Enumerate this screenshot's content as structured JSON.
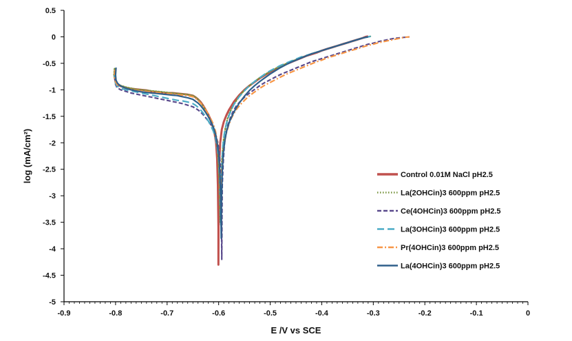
{
  "chart_data": {
    "type": "line",
    "title": "",
    "xlabel": "E /V vs SCE",
    "ylabel": "log (mA/cm²)",
    "xlim": [
      -0.9,
      0
    ],
    "ylim": [
      -5,
      0.5
    ],
    "x_ticks": [
      -0.9,
      -0.8,
      -0.7,
      -0.6,
      -0.5,
      -0.4,
      -0.3,
      -0.2,
      -0.1,
      0
    ],
    "x_tick_labels": [
      "-0.9",
      "-0.8",
      "-0.7",
      "-0.6",
      "-0.5",
      "-0.4",
      "-0.3",
      "-0.2",
      "-0.1",
      "0"
    ],
    "y_ticks": [
      0.5,
      0,
      -0.5,
      -1,
      -1.5,
      -2,
      -2.5,
      -3,
      -3.5,
      -4,
      -4.5,
      -5
    ],
    "y_tick_labels": [
      "0.5",
      "0",
      "-0.5",
      "-1",
      "-1.5",
      "-2",
      "-2.5",
      "-3",
      "-3.5",
      "-4",
      "-4.5",
      "-5"
    ],
    "grid": false,
    "legend_position": "right",
    "series": [
      {
        "name": "Control 0.01M NaCl pH2.5",
        "color": "#c0504d",
        "dash": "solid",
        "x": [
          -0.801,
          -0.802,
          -0.8,
          -0.797,
          -0.79,
          -0.78,
          -0.77,
          -0.76,
          -0.75,
          -0.74,
          -0.73,
          -0.72,
          -0.71,
          -0.7,
          -0.69,
          -0.68,
          -0.67,
          -0.66,
          -0.65,
          -0.645,
          -0.64,
          -0.635,
          -0.63,
          -0.625,
          -0.62,
          -0.615,
          -0.612,
          -0.608,
          -0.605,
          -0.603,
          -0.6015,
          -0.6005,
          -0.6005,
          -0.6,
          -0.599,
          -0.597,
          -0.594,
          -0.59,
          -0.585,
          -0.58,
          -0.575,
          -0.57,
          -0.56,
          -0.55,
          -0.54,
          -0.53,
          -0.52,
          -0.51,
          -0.5,
          -0.49,
          -0.48,
          -0.47,
          -0.46,
          -0.45,
          -0.44,
          -0.43,
          -0.42,
          -0.41,
          -0.4,
          -0.39,
          -0.38,
          -0.37,
          -0.36,
          -0.35,
          -0.34,
          -0.33,
          -0.32,
          -0.315,
          -0.31
        ],
        "y": [
          -0.6,
          -0.75,
          -0.85,
          -0.9,
          -0.93,
          -0.96,
          -0.98,
          -0.99,
          -1.0,
          -1.01,
          -1.03,
          -1.04,
          -1.05,
          -1.06,
          -1.06,
          -1.07,
          -1.08,
          -1.09,
          -1.11,
          -1.14,
          -1.18,
          -1.23,
          -1.3,
          -1.38,
          -1.47,
          -1.58,
          -1.68,
          -1.82,
          -2.0,
          -2.3,
          -2.8,
          -3.6,
          -4.3,
          -3.0,
          -2.4,
          -2.0,
          -1.75,
          -1.6,
          -1.48,
          -1.38,
          -1.3,
          -1.22,
          -1.1,
          -1.0,
          -0.92,
          -0.85,
          -0.78,
          -0.72,
          -0.66,
          -0.61,
          -0.56,
          -0.52,
          -0.48,
          -0.44,
          -0.4,
          -0.36,
          -0.33,
          -0.3,
          -0.26,
          -0.23,
          -0.2,
          -0.17,
          -0.14,
          -0.11,
          -0.08,
          -0.05,
          -0.02,
          0.0,
          0.01
        ]
      },
      {
        "name": "La(2OHCin)3 600ppm pH2.5",
        "color": "#77933c",
        "dash": "dot",
        "x": [
          -0.802,
          -0.803,
          -0.801,
          -0.797,
          -0.79,
          -0.78,
          -0.77,
          -0.76,
          -0.75,
          -0.74,
          -0.73,
          -0.72,
          -0.71,
          -0.7,
          -0.69,
          -0.68,
          -0.67,
          -0.66,
          -0.65,
          -0.645,
          -0.64,
          -0.635,
          -0.63,
          -0.625,
          -0.62,
          -0.615,
          -0.61,
          -0.606,
          -0.603,
          -0.601,
          -0.599,
          -0.598,
          -0.597,
          -0.596,
          -0.594,
          -0.591,
          -0.587,
          -0.583,
          -0.578,
          -0.573,
          -0.568,
          -0.56,
          -0.55,
          -0.54,
          -0.53,
          -0.52,
          -0.51,
          -0.5,
          -0.49,
          -0.48,
          -0.47,
          -0.46,
          -0.45,
          -0.44,
          -0.43,
          -0.42,
          -0.41,
          -0.4,
          -0.39,
          -0.38,
          -0.37,
          -0.36,
          -0.35,
          -0.34,
          -0.33,
          -0.32,
          -0.31,
          -0.305
        ],
        "y": [
          -0.6,
          -0.72,
          -0.82,
          -0.88,
          -0.92,
          -0.95,
          -0.97,
          -0.99,
          -1.0,
          -1.01,
          -1.02,
          -1.03,
          -1.04,
          -1.05,
          -1.06,
          -1.07,
          -1.08,
          -1.09,
          -1.11,
          -1.14,
          -1.18,
          -1.24,
          -1.31,
          -1.39,
          -1.49,
          -1.61,
          -1.73,
          -1.88,
          -2.05,
          -2.3,
          -2.7,
          -3.2,
          -3.5,
          -2.9,
          -2.35,
          -1.98,
          -1.72,
          -1.55,
          -1.42,
          -1.32,
          -1.24,
          -1.12,
          -1.01,
          -0.92,
          -0.84,
          -0.77,
          -0.71,
          -0.65,
          -0.6,
          -0.55,
          -0.51,
          -0.47,
          -0.43,
          -0.39,
          -0.36,
          -0.32,
          -0.29,
          -0.26,
          -0.23,
          -0.2,
          -0.17,
          -0.14,
          -0.11,
          -0.08,
          -0.05,
          -0.02,
          0.0,
          0.01
        ]
      },
      {
        "name": "Ce(4OHCin)3 600ppm pH2.5",
        "color": "#5a4a8c",
        "dash": "dash",
        "x": [
          -0.8,
          -0.801,
          -0.8,
          -0.797,
          -0.79,
          -0.78,
          -0.77,
          -0.76,
          -0.75,
          -0.74,
          -0.73,
          -0.72,
          -0.71,
          -0.7,
          -0.69,
          -0.68,
          -0.67,
          -0.66,
          -0.65,
          -0.64,
          -0.635,
          -0.63,
          -0.625,
          -0.62,
          -0.615,
          -0.61,
          -0.606,
          -0.602,
          -0.599,
          -0.597,
          -0.5955,
          -0.5945,
          -0.594,
          -0.5935,
          -0.593,
          -0.591,
          -0.589,
          -0.586,
          -0.582,
          -0.577,
          -0.572,
          -0.566,
          -0.56,
          -0.55,
          -0.54,
          -0.53,
          -0.52,
          -0.51,
          -0.5,
          -0.49,
          -0.48,
          -0.47,
          -0.46,
          -0.45,
          -0.44,
          -0.43,
          -0.42,
          -0.41,
          -0.4,
          -0.39,
          -0.38,
          -0.37,
          -0.36,
          -0.35,
          -0.34,
          -0.33,
          -0.32,
          -0.31,
          -0.3,
          -0.29,
          -0.28,
          -0.27,
          -0.26,
          -0.25,
          -0.24,
          -0.23
        ],
        "y": [
          -0.65,
          -0.8,
          -0.9,
          -0.96,
          -1.0,
          -1.03,
          -1.06,
          -1.08,
          -1.1,
          -1.12,
          -1.14,
          -1.16,
          -1.18,
          -1.2,
          -1.22,
          -1.24,
          -1.26,
          -1.29,
          -1.32,
          -1.38,
          -1.42,
          -1.47,
          -1.53,
          -1.59,
          -1.66,
          -1.74,
          -1.84,
          -1.98,
          -2.15,
          -2.4,
          -2.9,
          -3.5,
          -4.2,
          -3.4,
          -2.8,
          -2.35,
          -2.05,
          -1.83,
          -1.66,
          -1.52,
          -1.41,
          -1.31,
          -1.24,
          -1.14,
          -1.06,
          -0.99,
          -0.92,
          -0.86,
          -0.81,
          -0.76,
          -0.71,
          -0.67,
          -0.63,
          -0.59,
          -0.55,
          -0.51,
          -0.47,
          -0.44,
          -0.41,
          -0.38,
          -0.35,
          -0.32,
          -0.29,
          -0.26,
          -0.23,
          -0.2,
          -0.17,
          -0.14,
          -0.12,
          -0.09,
          -0.07,
          -0.05,
          -0.03,
          -0.02,
          -0.01,
          0.0
        ]
      },
      {
        "name": "La(3OHCin)3 600ppm pH2.5",
        "color": "#4bacc6",
        "dash": "longdash",
        "x": [
          -0.801,
          -0.802,
          -0.8,
          -0.797,
          -0.79,
          -0.78,
          -0.77,
          -0.76,
          -0.75,
          -0.74,
          -0.73,
          -0.72,
          -0.71,
          -0.7,
          -0.69,
          -0.68,
          -0.67,
          -0.66,
          -0.65,
          -0.645,
          -0.64,
          -0.635,
          -0.63,
          -0.625,
          -0.62,
          -0.615,
          -0.61,
          -0.606,
          -0.603,
          -0.6,
          -0.598,
          -0.597,
          -0.596,
          -0.5955,
          -0.594,
          -0.592,
          -0.589,
          -0.585,
          -0.58,
          -0.575,
          -0.57,
          -0.56,
          -0.55,
          -0.54,
          -0.53,
          -0.52,
          -0.51,
          -0.5,
          -0.49,
          -0.48,
          -0.47,
          -0.46,
          -0.45,
          -0.44,
          -0.43,
          -0.42,
          -0.41,
          -0.4,
          -0.39,
          -0.38,
          -0.37,
          -0.36,
          -0.35,
          -0.34,
          -0.33,
          -0.32,
          -0.31,
          -0.305
        ],
        "y": [
          -0.65,
          -0.8,
          -0.88,
          -0.93,
          -0.97,
          -1.0,
          -1.02,
          -1.04,
          -1.06,
          -1.08,
          -1.1,
          -1.12,
          -1.14,
          -1.16,
          -1.18,
          -1.2,
          -1.21,
          -1.23,
          -1.26,
          -1.29,
          -1.33,
          -1.38,
          -1.44,
          -1.51,
          -1.59,
          -1.68,
          -1.79,
          -1.92,
          -2.08,
          -2.3,
          -2.7,
          -3.2,
          -3.55,
          -3.0,
          -2.45,
          -2.08,
          -1.83,
          -1.64,
          -1.49,
          -1.37,
          -1.27,
          -1.13,
          -1.02,
          -0.92,
          -0.84,
          -0.77,
          -0.7,
          -0.64,
          -0.59,
          -0.54,
          -0.5,
          -0.46,
          -0.42,
          -0.38,
          -0.35,
          -0.32,
          -0.29,
          -0.26,
          -0.23,
          -0.2,
          -0.17,
          -0.14,
          -0.11,
          -0.08,
          -0.05,
          -0.02,
          0.0,
          0.01
        ]
      },
      {
        "name": "Pr(4OHCin)3 600ppm pH2.5",
        "color": "#f79646",
        "dash": "dashdot",
        "x": [
          -0.801,
          -0.802,
          -0.8,
          -0.797,
          -0.79,
          -0.78,
          -0.77,
          -0.76,
          -0.75,
          -0.74,
          -0.73,
          -0.72,
          -0.71,
          -0.7,
          -0.69,
          -0.68,
          -0.67,
          -0.66,
          -0.65,
          -0.645,
          -0.64,
          -0.635,
          -0.63,
          -0.625,
          -0.62,
          -0.615,
          -0.61,
          -0.606,
          -0.603,
          -0.6,
          -0.598,
          -0.597,
          -0.596,
          -0.595,
          -0.593,
          -0.59,
          -0.586,
          -0.581,
          -0.576,
          -0.57,
          -0.564,
          -0.556,
          -0.548,
          -0.54,
          -0.53,
          -0.52,
          -0.51,
          -0.5,
          -0.49,
          -0.48,
          -0.47,
          -0.46,
          -0.45,
          -0.44,
          -0.43,
          -0.42,
          -0.41,
          -0.4,
          -0.39,
          -0.38,
          -0.37,
          -0.36,
          -0.35,
          -0.34,
          -0.33,
          -0.32,
          -0.31,
          -0.3,
          -0.29,
          -0.28,
          -0.27,
          -0.26,
          -0.25,
          -0.24,
          -0.23
        ],
        "y": [
          -0.62,
          -0.76,
          -0.85,
          -0.9,
          -0.94,
          -0.97,
          -0.99,
          -1.01,
          -1.02,
          -1.03,
          -1.04,
          -1.05,
          -1.06,
          -1.07,
          -1.08,
          -1.09,
          -1.1,
          -1.11,
          -1.13,
          -1.16,
          -1.2,
          -1.25,
          -1.31,
          -1.38,
          -1.46,
          -1.55,
          -1.66,
          -1.79,
          -1.96,
          -2.2,
          -2.55,
          -3.0,
          -3.3,
          -2.85,
          -2.4,
          -2.08,
          -1.85,
          -1.68,
          -1.55,
          -1.44,
          -1.35,
          -1.26,
          -1.18,
          -1.11,
          -1.04,
          -0.97,
          -0.91,
          -0.86,
          -0.81,
          -0.76,
          -0.71,
          -0.67,
          -0.63,
          -0.59,
          -0.55,
          -0.51,
          -0.47,
          -0.44,
          -0.4,
          -0.37,
          -0.34,
          -0.31,
          -0.28,
          -0.25,
          -0.22,
          -0.19,
          -0.16,
          -0.14,
          -0.11,
          -0.09,
          -0.07,
          -0.05,
          -0.03,
          -0.01,
          0.0
        ]
      },
      {
        "name": "La(4OHCin)3 600ppm pH2.5",
        "color": "#2f5f8a",
        "dash": "solid",
        "x": [
          -0.799,
          -0.8,
          -0.799,
          -0.796,
          -0.79,
          -0.78,
          -0.77,
          -0.76,
          -0.75,
          -0.74,
          -0.73,
          -0.72,
          -0.71,
          -0.7,
          -0.69,
          -0.68,
          -0.67,
          -0.66,
          -0.65,
          -0.64,
          -0.635,
          -0.63,
          -0.625,
          -0.62,
          -0.615,
          -0.61,
          -0.606,
          -0.603,
          -0.6,
          -0.598,
          -0.5965,
          -0.5955,
          -0.595,
          -0.5945,
          -0.593,
          -0.591,
          -0.588,
          -0.584,
          -0.579,
          -0.573,
          -0.567,
          -0.56,
          -0.55,
          -0.54,
          -0.53,
          -0.52,
          -0.51,
          -0.5,
          -0.49,
          -0.48,
          -0.47,
          -0.46,
          -0.45,
          -0.44,
          -0.43,
          -0.42,
          -0.41,
          -0.4,
          -0.39,
          -0.38,
          -0.37,
          -0.36,
          -0.35,
          -0.34,
          -0.33,
          -0.32,
          -0.31
        ],
        "y": [
          -0.58,
          -0.72,
          -0.82,
          -0.88,
          -0.93,
          -0.97,
          -1.0,
          -1.02,
          -1.04,
          -1.05,
          -1.06,
          -1.07,
          -1.08,
          -1.09,
          -1.1,
          -1.11,
          -1.13,
          -1.15,
          -1.18,
          -1.25,
          -1.3,
          -1.36,
          -1.43,
          -1.51,
          -1.6,
          -1.71,
          -1.84,
          -2.0,
          -2.2,
          -2.5,
          -2.9,
          -3.4,
          -3.8,
          -3.1,
          -2.55,
          -2.2,
          -1.95,
          -1.76,
          -1.6,
          -1.47,
          -1.36,
          -1.25,
          -1.12,
          -1.01,
          -0.92,
          -0.84,
          -0.77,
          -0.7,
          -0.64,
          -0.58,
          -0.53,
          -0.48,
          -0.44,
          -0.4,
          -0.36,
          -0.32,
          -0.29,
          -0.26,
          -0.23,
          -0.2,
          -0.17,
          -0.14,
          -0.11,
          -0.08,
          -0.05,
          -0.02,
          0.0
        ]
      }
    ]
  }
}
